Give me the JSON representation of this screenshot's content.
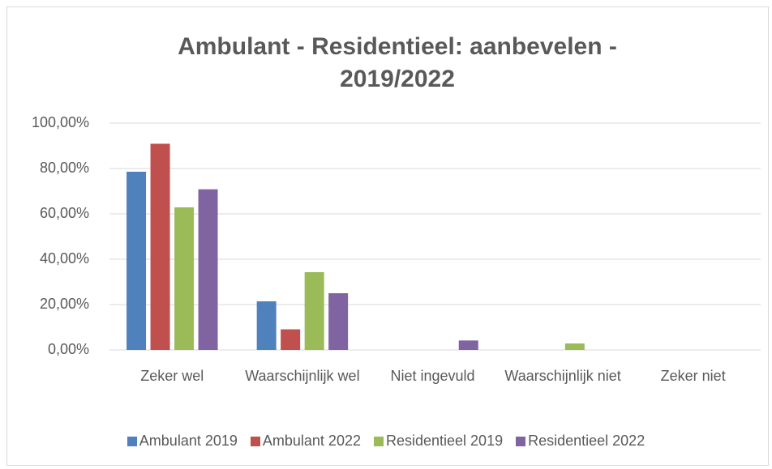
{
  "chart_data": {
    "type": "bar",
    "title": "Ambulant - Residentieel: aanbevelen - 2019/2022",
    "categories": [
      "Zeker wel",
      "Waarschijnlijk wel",
      "Niet ingevuld",
      "Waarschijnlijk niet",
      "Zeker niet"
    ],
    "series": [
      {
        "name": "Ambulant 2019",
        "color": "#4f81bd",
        "values": [
          78.57,
          21.43,
          0,
          0,
          0
        ]
      },
      {
        "name": "Ambulant 2022",
        "color": "#c0504d",
        "values": [
          90.91,
          9.09,
          0,
          0,
          0
        ]
      },
      {
        "name": "Residentieel 2019",
        "color": "#9bbb59",
        "values": [
          62.86,
          34.29,
          0,
          2.86,
          0
        ]
      },
      {
        "name": "Residentieel 2022",
        "color": "#8064a2",
        "values": [
          70.83,
          25,
          4.17,
          0,
          0
        ]
      }
    ],
    "ylim": [
      0,
      100
    ],
    "yticks": [
      {
        "value": 0,
        "label": "0,00%"
      },
      {
        "value": 20,
        "label": "20,00%"
      },
      {
        "value": 40,
        "label": "40,00%"
      },
      {
        "value": 60,
        "label": "60,00%"
      },
      {
        "value": 80,
        "label": "80,00%"
      },
      {
        "value": 100,
        "label": "100,00%"
      }
    ],
    "grid": true,
    "legend": "bottom"
  }
}
